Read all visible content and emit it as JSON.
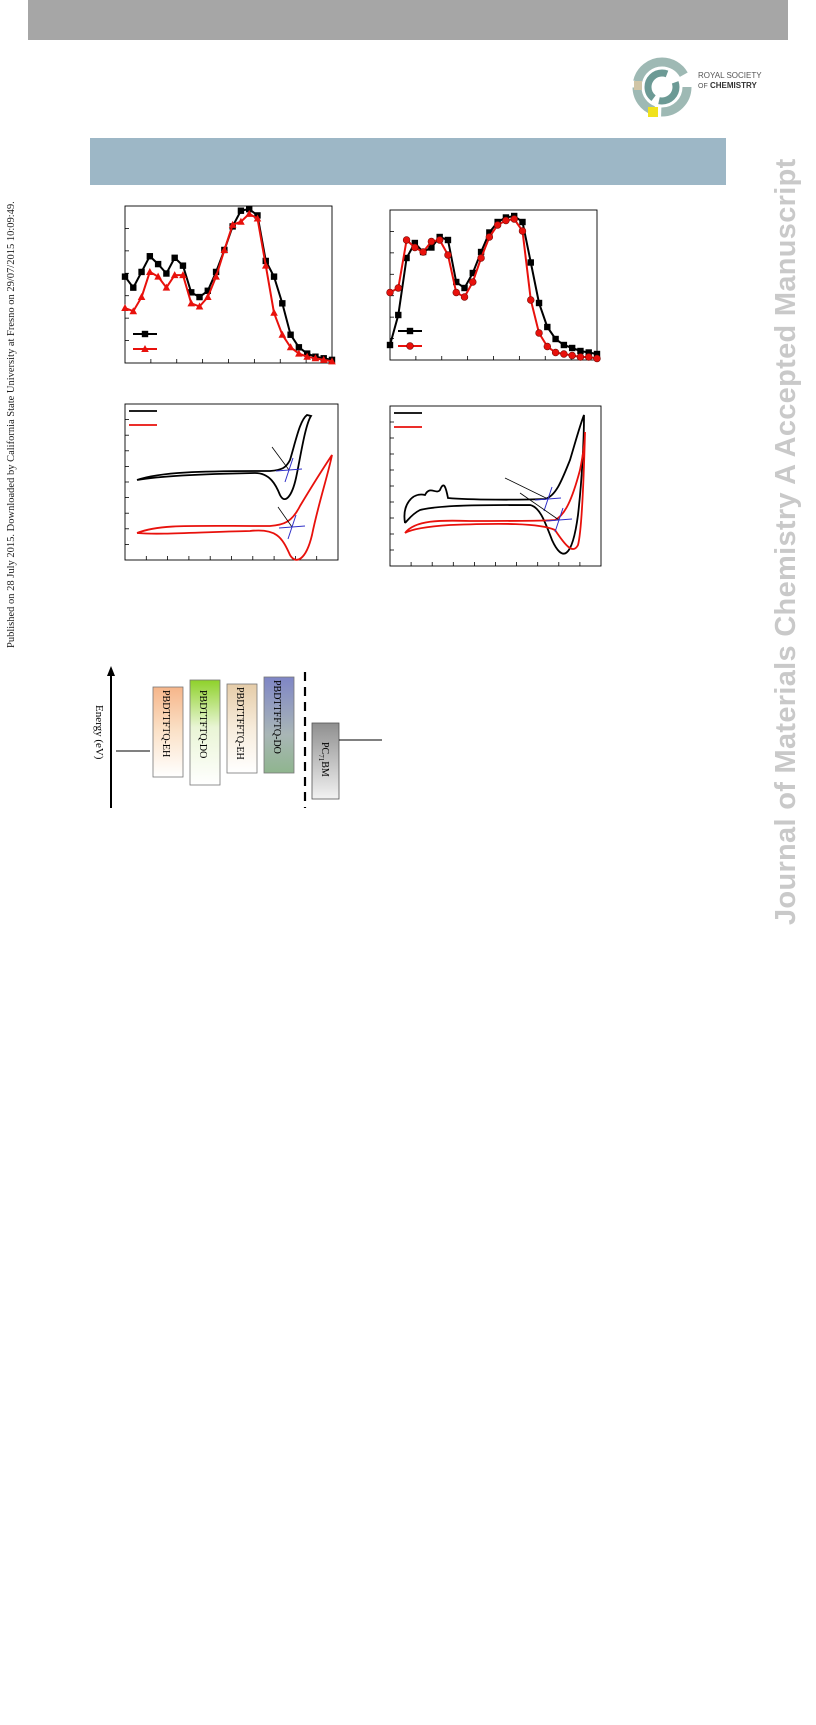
{
  "watermark": {
    "published_note": "Published on 28 July 2015. Downloaded by California State University at Fresno on 29/07/2015 10:09:49.",
    "journal_name": "Journal of Materials Chemistry A Accepted Manuscript"
  },
  "publisher_logo": {
    "line1": "ROYAL SOCIETY",
    "line2": "OF",
    "line3": "CHEMISTRY"
  },
  "energy_diagram": {
    "axis_label": "Energy (eV)",
    "boxes": [
      "PBDTTFTQ-EH",
      "PBDTTFTQ-DO",
      "PBDTTFFTQ-EH",
      "PBDTTFFTQ-DO"
    ],
    "acceptor_label": "PC",
    "acceptor_subscript": "71",
    "acceptor_suffix": "BM"
  },
  "colors": {
    "header_gray": "#a6a6a6",
    "caption_blue": "#9db7c6",
    "series_black": "#000000",
    "series_red": "#e8110c",
    "onset_blue": "#3030c8"
  },
  "chart_data": [
    {
      "type": "line",
      "series": [
        {
          "marker": "square",
          "color": "#000000",
          "x": [
            0,
            0.04,
            0.08,
            0.12,
            0.16,
            0.2,
            0.24,
            0.28,
            0.32,
            0.36,
            0.4,
            0.44,
            0.48,
            0.52,
            0.56,
            0.6,
            0.64,
            0.68,
            0.72,
            0.76,
            0.8,
            0.84,
            0.88,
            0.92,
            0.96,
            1.0
          ],
          "values": [
            0.55,
            0.48,
            0.58,
            0.68,
            0.63,
            0.57,
            0.67,
            0.62,
            0.45,
            0.42,
            0.46,
            0.58,
            0.72,
            0.87,
            0.97,
            0.98,
            0.94,
            0.65,
            0.55,
            0.38,
            0.18,
            0.1,
            0.06,
            0.04,
            0.03,
            0.02
          ]
        },
        {
          "marker": "triangle",
          "color": "#e8110c",
          "x": [
            0,
            0.04,
            0.08,
            0.12,
            0.16,
            0.2,
            0.24,
            0.28,
            0.32,
            0.36,
            0.4,
            0.44,
            0.48,
            0.52,
            0.56,
            0.6,
            0.64,
            0.68,
            0.72,
            0.76,
            0.8,
            0.84,
            0.88,
            0.92,
            0.96,
            1.0
          ],
          "values": [
            0.35,
            0.33,
            0.42,
            0.58,
            0.55,
            0.48,
            0.56,
            0.56,
            0.38,
            0.36,
            0.42,
            0.55,
            0.72,
            0.88,
            0.9,
            0.95,
            0.92,
            0.62,
            0.32,
            0.18,
            0.1,
            0.06,
            0.04,
            0.03,
            0.02,
            0.01
          ]
        }
      ]
    },
    {
      "type": "line",
      "series": [
        {
          "marker": "square",
          "color": "#000000",
          "x": [
            0,
            0.04,
            0.08,
            0.12,
            0.16,
            0.2,
            0.24,
            0.28,
            0.32,
            0.36,
            0.4,
            0.44,
            0.48,
            0.52,
            0.56,
            0.6,
            0.64,
            0.68,
            0.72,
            0.76,
            0.8,
            0.84,
            0.88,
            0.92,
            0.96,
            1.0
          ],
          "values": [
            0.1,
            0.3,
            0.68,
            0.78,
            0.72,
            0.75,
            0.82,
            0.8,
            0.52,
            0.48,
            0.58,
            0.72,
            0.85,
            0.92,
            0.95,
            0.96,
            0.92,
            0.65,
            0.38,
            0.22,
            0.14,
            0.1,
            0.08,
            0.06,
            0.05,
            0.04
          ]
        },
        {
          "marker": "circle",
          "color": "#e8110c",
          "x": [
            0,
            0.04,
            0.08,
            0.12,
            0.16,
            0.2,
            0.24,
            0.28,
            0.32,
            0.36,
            0.4,
            0.44,
            0.48,
            0.52,
            0.56,
            0.6,
            0.64,
            0.68,
            0.72,
            0.76,
            0.8,
            0.84,
            0.88,
            0.92,
            0.96,
            1.0
          ],
          "values": [
            0.45,
            0.48,
            0.8,
            0.75,
            0.72,
            0.79,
            0.8,
            0.7,
            0.45,
            0.42,
            0.52,
            0.68,
            0.82,
            0.9,
            0.93,
            0.94,
            0.86,
            0.4,
            0.18,
            0.09,
            0.05,
            0.04,
            0.03,
            0.02,
            0.02,
            0.01
          ]
        }
      ]
    },
    {
      "type": "line",
      "series": [
        {
          "color": "#000000"
        },
        {
          "color": "#e8110c"
        }
      ]
    },
    {
      "type": "line",
      "series": [
        {
          "color": "#000000"
        },
        {
          "color": "#e8110c"
        }
      ]
    }
  ]
}
